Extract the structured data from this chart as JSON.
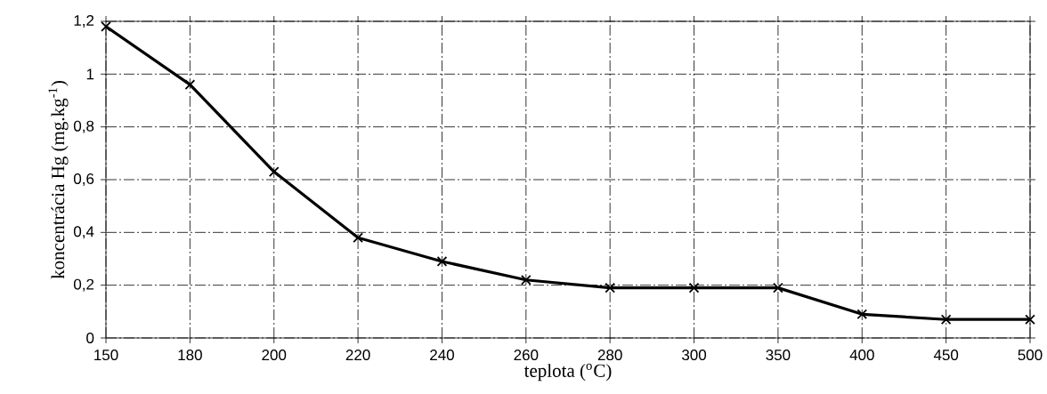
{
  "chart_data": {
    "type": "line",
    "xlabel": "teplota ($^{o}$C)",
    "ylabel": "koncentrácia Hg  (mg.kg$^{-1}$)",
    "categories": [
      "150",
      "180",
      "200",
      "220",
      "240",
      "260",
      "280",
      "300",
      "350",
      "400",
      "450",
      "500"
    ],
    "values": [
      1.18,
      0.96,
      0.63,
      0.38,
      0.29,
      0.22,
      0.19,
      0.19,
      0.19,
      0.09,
      0.07,
      0.07
    ],
    "color": "#000000",
    "ylim": [
      0,
      1.2
    ],
    "yticks": [
      0,
      {
        "value": 0.2,
        "label": "0,2"
      },
      {
        "value": 0.4,
        "label": "0,4"
      },
      {
        "value": 0.6,
        "label": "0,6"
      },
      {
        "value": 0.8,
        "label": "0,8"
      },
      1,
      {
        "value": 1.2,
        "label": "1,2"
      }
    ],
    "grid": true,
    "marker": "cross",
    "line_style": "solid"
  }
}
